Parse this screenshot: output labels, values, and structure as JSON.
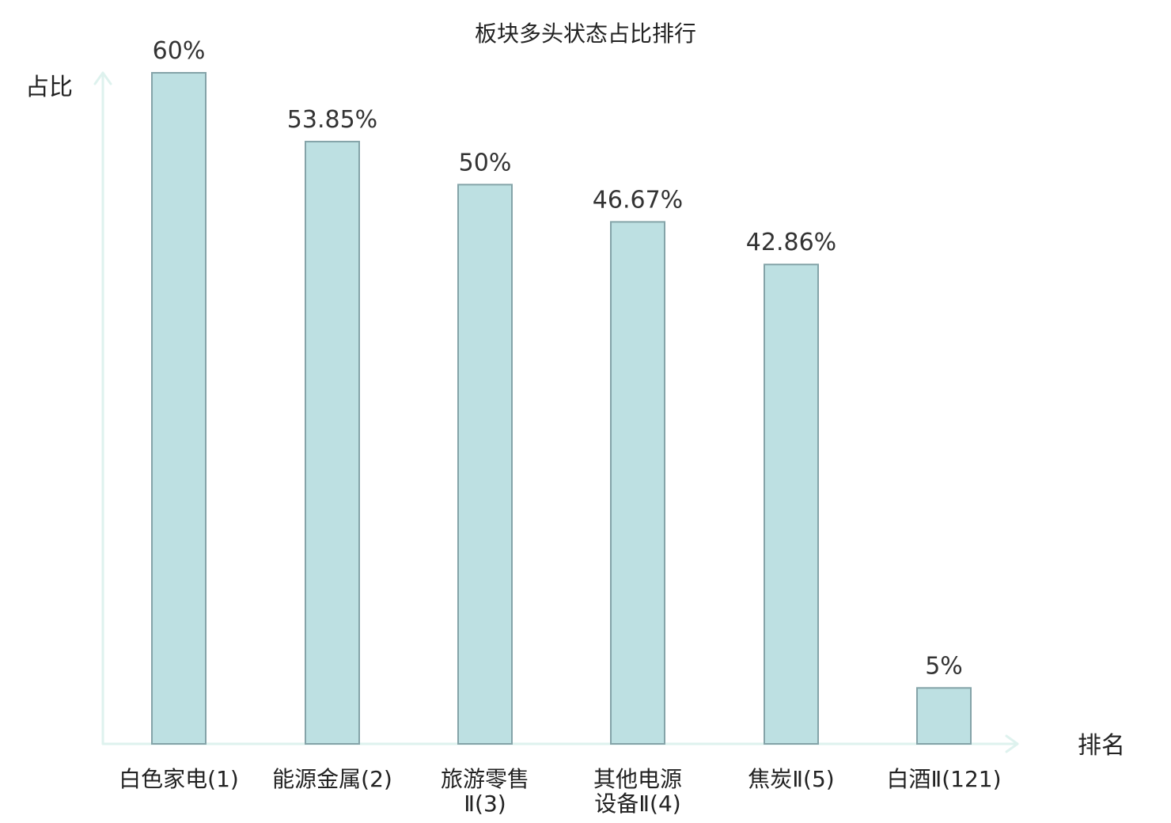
{
  "chart_data": {
    "type": "bar",
    "title": "板块多头状态占比排行",
    "ylabel": "占比",
    "xlabel": "排名",
    "ylim": [
      0,
      60
    ],
    "grid": false,
    "categories": [
      "白色家电(1)",
      "能源金属(2)",
      "旅游零售Ⅱ(3)",
      "其他电源设备Ⅱ(4)",
      "焦炭Ⅱ(5)",
      "白酒Ⅱ(121)"
    ],
    "category_lines": [
      [
        "白色家电(1)"
      ],
      [
        "能源金属(2)"
      ],
      [
        "旅游零售",
        "Ⅱ(3)"
      ],
      [
        "其他电源",
        "设备Ⅱ(4)"
      ],
      [
        "焦炭Ⅱ(5)"
      ],
      [
        "白酒Ⅱ(121)"
      ]
    ],
    "values": [
      60,
      53.85,
      50,
      46.67,
      42.86,
      5
    ],
    "value_labels": [
      "60%",
      "53.85%",
      "50%",
      "46.67%",
      "42.86%",
      "5%"
    ],
    "highlight_index": 5,
    "colors": {
      "bar_fill": "#bde0e2",
      "bar_stroke": "#84a3a8",
      "axis": "#def2ee",
      "highlight_text": "#e02020",
      "text": "#222222"
    }
  }
}
